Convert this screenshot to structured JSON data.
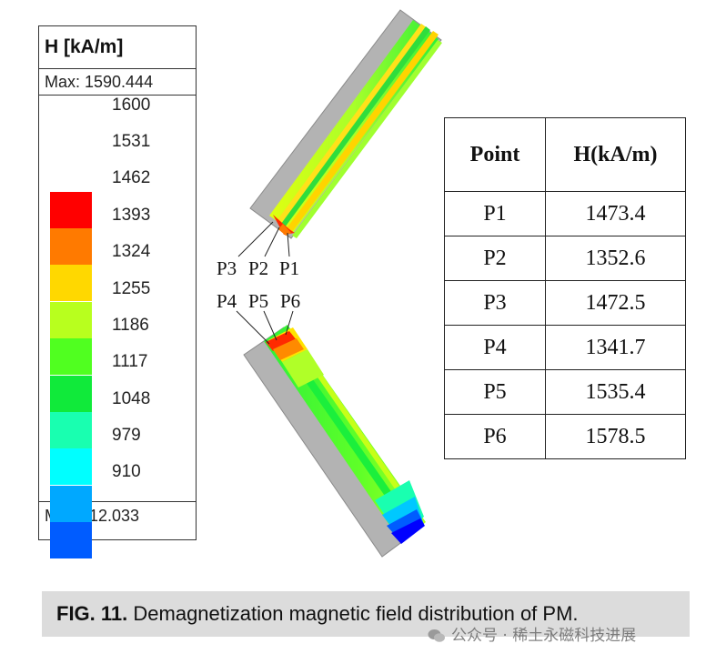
{
  "legend": {
    "title": "H [kA/m]",
    "max_label": "Max: 1590.444",
    "min_label": "Min:  912.033",
    "ticks": [
      "1600",
      "1531",
      "1462",
      "1393",
      "1324",
      "1255",
      "1186",
      "1117",
      "1048",
      "979",
      "910"
    ],
    "colors": [
      "#ff0000",
      "#ff7a00",
      "#ffd800",
      "#b8ff1e",
      "#50ff20",
      "#10ea3a",
      "#19ffb0",
      "#00ffff",
      "#00a8ff",
      "#005cff",
      "#0000ff"
    ]
  },
  "point_labels": {
    "p1": "P1",
    "p2": "P2",
    "p3": "P3",
    "p4": "P4",
    "p5": "P5",
    "p6": "P6"
  },
  "table": {
    "headers": [
      "Point",
      "H(kA/m)"
    ],
    "rows": [
      [
        "P1",
        "1473.4"
      ],
      [
        "P2",
        "1352.6"
      ],
      [
        "P3",
        "1472.5"
      ],
      [
        "P4",
        "1341.7"
      ],
      [
        "P5",
        "1535.4"
      ],
      [
        "P6",
        "1578.5"
      ]
    ]
  },
  "caption": {
    "label": "FIG. 11.",
    "text": " Demagnetization magnetic field distribution of PM."
  },
  "watermark": "公众号 · 稀土永磁科技进展"
}
